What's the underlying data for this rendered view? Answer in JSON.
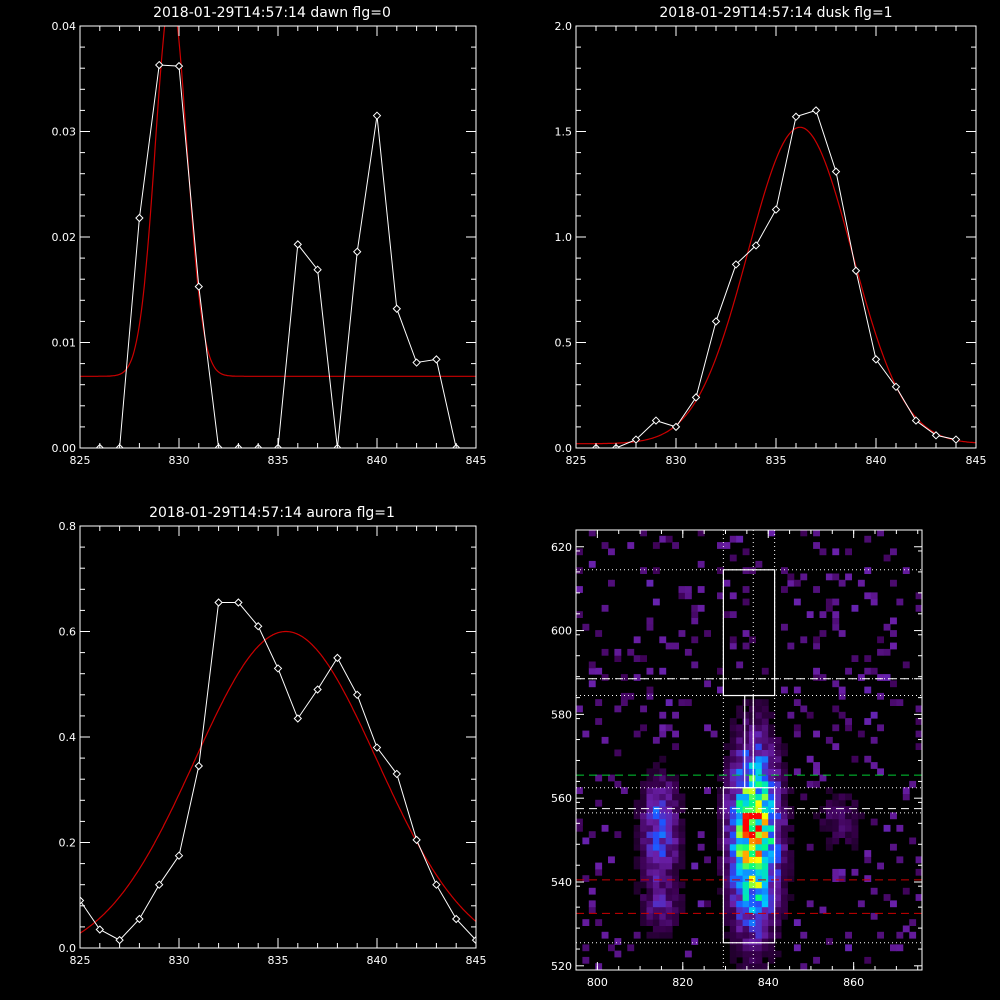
{
  "chart_data": [
    {
      "id": "dawn",
      "type": "line",
      "title": "2018-01-29T14:57:14 dawn flg=0",
      "xlim": [
        825,
        845
      ],
      "ylim": [
        0,
        0.04
      ],
      "xticks": [
        825,
        830,
        835,
        840,
        845
      ],
      "xtick_labels": [
        "825",
        "830",
        "835",
        "840",
        "845"
      ],
      "yticks": [
        0,
        0.01,
        0.02,
        0.03,
        0.04
      ],
      "ytick_labels": [
        "0.00",
        "0.01",
        "0.02",
        "0.03",
        "0.04"
      ],
      "series": [
        {
          "kind": "data",
          "color": "#ffffff",
          "marker": "diamond",
          "x": [
            826,
            827,
            828,
            829,
            830,
            831,
            832,
            833,
            834,
            835,
            836,
            837,
            838,
            839,
            840,
            841,
            842,
            843,
            844
          ],
          "y": [
            0,
            0,
            0.0218,
            0.0363,
            0.0362,
            0.0153,
            0,
            0,
            0,
            0,
            0.0193,
            0.0169,
            0,
            0.0186,
            0.0315,
            0.0132,
            0.0081,
            0.0084,
            0
          ]
        },
        {
          "kind": "fit",
          "color": "#cc0000",
          "model": "gaussian",
          "amplitude": 0.036,
          "center": 829.6,
          "sigma": 0.8,
          "offset": 0.0068
        }
      ]
    },
    {
      "id": "dusk",
      "type": "line",
      "title": "2018-01-29T14:57:14 dusk flg=1",
      "xlim": [
        825,
        845
      ],
      "ylim": [
        0,
        2.0
      ],
      "xticks": [
        825,
        830,
        835,
        840,
        845
      ],
      "xtick_labels": [
        "825",
        "830",
        "835",
        "840",
        "845"
      ],
      "yticks": [
        0,
        0.5,
        1.0,
        1.5,
        2.0
      ],
      "ytick_labels": [
        "0.0",
        "0.5",
        "1.0",
        "1.5",
        "2.0"
      ],
      "series": [
        {
          "kind": "data",
          "color": "#ffffff",
          "marker": "diamond",
          "x": [
            826,
            827,
            828,
            829,
            830,
            831,
            832,
            833,
            834,
            835,
            836,
            837,
            838,
            839,
            840,
            841,
            842,
            843,
            844
          ],
          "y": [
            0.0,
            0.0,
            0.04,
            0.13,
            0.1,
            0.24,
            0.6,
            0.87,
            0.96,
            1.13,
            1.57,
            1.6,
            1.31,
            0.84,
            0.42,
            0.29,
            0.13,
            0.06,
            0.04
          ]
        },
        {
          "kind": "fit",
          "color": "#cc0000",
          "model": "gaussian",
          "amplitude": 1.5,
          "center": 836.2,
          "sigma": 2.6,
          "offset": 0.02
        }
      ]
    },
    {
      "id": "aurora",
      "type": "line",
      "title": "2018-01-29T14:57:14 aurora flg=1",
      "xlim": [
        825,
        845
      ],
      "ylim": [
        0,
        0.8
      ],
      "xticks": [
        825,
        830,
        835,
        840,
        845
      ],
      "xtick_labels": [
        "825",
        "830",
        "835",
        "840",
        "845"
      ],
      "yticks": [
        0,
        0.2,
        0.4,
        0.6,
        0.8
      ],
      "ytick_labels": [
        "0.0",
        "0.2",
        "0.4",
        "0.6",
        "0.8"
      ],
      "series": [
        {
          "kind": "data",
          "color": "#ffffff",
          "marker": "diamond",
          "x": [
            825,
            826,
            827,
            828,
            829,
            830,
            831,
            832,
            833,
            834,
            835,
            836,
            837,
            838,
            839,
            840,
            841,
            842,
            843,
            844,
            845
          ],
          "y": [
            0.09,
            0.035,
            0.015,
            0.055,
            0.12,
            0.175,
            0.345,
            0.655,
            0.655,
            0.61,
            0.53,
            0.435,
            0.49,
            0.55,
            0.48,
            0.38,
            0.33,
            0.205,
            0.12,
            0.055,
            0.015
          ]
        },
        {
          "kind": "fit",
          "color": "#cc0000",
          "model": "gaussian",
          "amplitude": 0.62,
          "center": 835.4,
          "sigma": 4.6,
          "offset": -0.02
        }
      ]
    },
    {
      "id": "image",
      "type": "heatmap",
      "title": "",
      "xlim": [
        795,
        876
      ],
      "ylim": [
        519,
        624
      ],
      "xticks": [
        800,
        820,
        840,
        860
      ],
      "xtick_labels": [
        "800",
        "820",
        "840",
        "860"
      ],
      "yticks": [
        520,
        540,
        560,
        580,
        600,
        620
      ],
      "ytick_labels": [
        "520",
        "540",
        "560",
        "580",
        "600",
        "620"
      ],
      "colormap": [
        "#000000",
        "#3a0050",
        "#6a1fa8",
        "#2050ff",
        "#00c8ff",
        "#00ff80",
        "#ffff00",
        "#ff0000"
      ],
      "emission_regions": [
        {
          "center_x": 836,
          "center_y": 550,
          "width_x": 4.0,
          "height_y": 15,
          "peak": 1.0
        },
        {
          "center_x": 814,
          "center_y": 552,
          "width_x": 3.2,
          "height_y": 9,
          "peak": 0.45
        },
        {
          "center_x": 814,
          "center_y": 533,
          "width_x": 3.5,
          "height_y": 5,
          "peak": 0.22
        },
        {
          "center_x": 856,
          "center_y": 554,
          "width_x": 4.0,
          "height_y": 6,
          "peak": 0.18
        }
      ],
      "background_fraction": 0.1,
      "overlays": {
        "hlines_dotted_white": [
          614.5,
          588.5,
          584.5,
          562.5,
          556.5,
          525.5
        ],
        "hlines_dashed_white": [
          588.5,
          557.5
        ],
        "hlines_dashed_green": [
          565.5
        ],
        "hlines_dashed_red": [
          540.5,
          532.5
        ],
        "vlines_dotted_white": [
          829.5,
          836.5,
          841.5
        ],
        "boxes": [
          [
            829.5,
            584.5,
            841.5,
            614.5
          ],
          [
            834.5,
            562.5,
            836.5,
            584.5
          ],
          [
            829.5,
            525.5,
            841.5,
            562.5
          ]
        ]
      }
    }
  ]
}
